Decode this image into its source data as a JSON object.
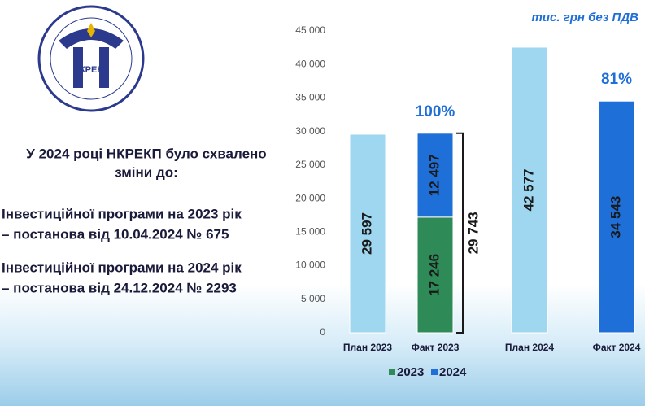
{
  "slide": {
    "logo_text": "НКРЕКП",
    "heading": [
      "У 2024 році НКРЕКП було схвалено",
      "зміни до:"
    ],
    "items": [
      [
        "Інвестиційної програми на 2023 рік",
        "– постанова від 10.04.2024 № 675"
      ],
      [
        "Інвестиційної програми на 2024 рік",
        "– постанова від 24.12.2024 № 2293"
      ]
    ]
  },
  "chart_data": {
    "type": "bar",
    "stacked": true,
    "unit_label": "тис. грн без ПДВ",
    "categories": [
      "План 2023",
      "Факт 2023",
      "План 2024",
      "Факт 2024"
    ],
    "series": [
      {
        "color": "#9fd6f0",
        "values": [
          29597,
          null,
          42577,
          null
        ],
        "value_labels": [
          "29 597",
          null,
          "42 577",
          null
        ]
      },
      {
        "name": "2023",
        "color": "#2e8b57",
        "values": [
          null,
          17246,
          null,
          null
        ],
        "value_labels": [
          null,
          "17 246",
          null,
          null
        ]
      },
      {
        "name": "2024",
        "color": "#1f6fd8",
        "values": [
          null,
          12497,
          null,
          34543
        ],
        "value_labels": [
          null,
          "12 497",
          null,
          "34 543"
        ]
      }
    ],
    "percent_labels": [
      null,
      "100%",
      null,
      "81%"
    ],
    "total_label": "29 743",
    "ylim": [
      0,
      45000
    ],
    "yticks": [
      0,
      {
        "value": 5000,
        "label": "5 000"
      },
      {
        "value": 10000,
        "label": "10 000"
      },
      {
        "value": 15000,
        "label": "15 000"
      },
      {
        "value": 20000,
        "label": "20 000"
      },
      {
        "value": 25000,
        "label": "25 000"
      },
      {
        "value": 30000,
        "label": "30 000"
      },
      {
        "value": 35000,
        "label": "35 000"
      },
      {
        "value": 40000,
        "label": "40 000"
      },
      {
        "value": 45000,
        "label": "45 000"
      }
    ],
    "grid": false,
    "legend": "bottom"
  }
}
